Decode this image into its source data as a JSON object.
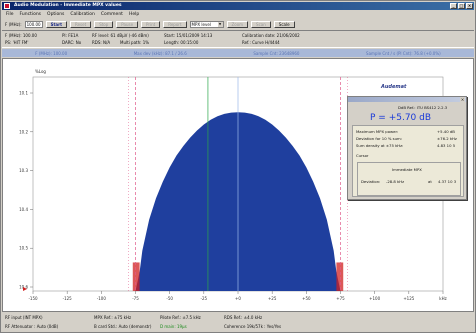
{
  "window": {
    "title": "Audio Modulation - Immediate MPX values"
  },
  "menu": [
    "File",
    "Functions",
    "Options",
    "Calibration",
    "Comment",
    "Help"
  ],
  "toolbar": {
    "freq_label": "F (MHz):",
    "freq_value": "100.00",
    "buttons": [
      {
        "label": "Start",
        "state": "active"
      },
      {
        "label": "Reset",
        "state": "disabled"
      },
      {
        "label": "Stop",
        "state": "disabled"
      },
      {
        "label": "Pause",
        "state": "disabled"
      },
      {
        "label": "Print",
        "state": "disabled"
      },
      {
        "label": "Report",
        "state": "disabled"
      }
    ],
    "mode_select": "MPX level",
    "extra_buttons": [
      {
        "label": "Zoom",
        "state": "disabled"
      },
      {
        "label": "Scan",
        "state": "disabled"
      },
      {
        "label": "Scale",
        "state": "normal"
      }
    ]
  },
  "info": {
    "freq": "F (MHz): 100.00",
    "pi": "PI: FE1A",
    "rf_level": "RF level: 61 dBµV (-46 dBm)",
    "start": "Start: 15/01/2009 14:13",
    "calibration": "Calibration date: 21/06/2002",
    "ps": "PS: 'HIT FM'",
    "darc": "DARC: No",
    "rds": "RDS: N/A",
    "multipath": "Multi path: 1%",
    "length": "Length: 00:15:00",
    "ref": "Ref.: Curve H/4444"
  },
  "params": {
    "freq": "F (MHz): 100.00",
    "max_dev": "Max dev (kHz): 87.1 / 26.6",
    "sample": "Sample Cnt: 23648960",
    "sample_rate": "Sample Cnt / s (Pl Cnt): 76.8 (+0.0%)"
  },
  "chart_data": {
    "type": "area",
    "ylabel": "%Log",
    "xlim": [
      -150,
      150
    ],
    "ylim": [
      10.0,
      10.9
    ],
    "yticks": [
      "10.1",
      "10.2",
      "10.3",
      "10.4",
      "10.5",
      "10.6"
    ],
    "xticks": [
      "-150",
      "-125",
      "-100",
      "-75",
      "-50",
      "-25",
      "+0",
      "+25",
      "+50",
      "+75",
      "+100",
      "+125",
      "kHz"
    ],
    "series": [
      {
        "x": [
          -75,
          -72,
          -70,
          -65,
          -60,
          -55,
          -50,
          -45,
          -40,
          -35,
          -30,
          -25,
          -20,
          -15,
          -10,
          -5,
          0,
          5,
          10,
          15,
          20,
          25,
          30,
          35,
          40,
          45,
          50,
          55,
          60,
          65,
          70,
          72,
          75
        ],
        "y": [
          10.0,
          10.08,
          10.17,
          10.3,
          10.39,
          10.46,
          10.52,
          10.57,
          10.61,
          10.645,
          10.675,
          10.7,
          10.72,
          10.735,
          10.745,
          10.75,
          10.752,
          10.75,
          10.745,
          10.735,
          10.72,
          10.7,
          10.675,
          10.645,
          10.61,
          10.57,
          10.52,
          10.46,
          10.39,
          10.3,
          10.17,
          10.08,
          10.0
        ],
        "color": "#1f3f9e"
      }
    ],
    "limit_lines": [
      -75,
      75
    ],
    "limit_color": "#e05a8a",
    "outer_lines": [
      -80,
      80
    ],
    "center_line": 0,
    "green_marker": -22,
    "edge_color": "#d02020"
  },
  "panel": {
    "ref": "DdB Ref.: ITU BS412 2.2.3",
    "big": "P = +5.70 dB",
    "rows": [
      {
        "label": "Maximum MPX power:",
        "value": "+5.40 dB"
      },
      {
        "label": "Deviation for 10 % sum:",
        "value": "±76.2 kHz"
      },
      {
        "label": "Sum density at ±75 kHz:",
        "value": "4.83 10 5"
      }
    ],
    "cursor_label": "Cursor",
    "cursor_value": "Immediate MPX",
    "deviation_label": "Deviation:",
    "deviation_value": "-28.8 kHz",
    "at": "at",
    "at_value": "4.37 10 3"
  },
  "logo": "Audemat",
  "status": {
    "rf_input": "RF input (INT MPX)",
    "mpx_ref": "MPX Ref.: ±75 kHz",
    "pilote_ref": "Pilote Ref.: ±7.5 kHz",
    "rds_ref": "RDS Ref.: ±4.0 kHz",
    "rf_attenuator": "RF Attenuator : Auto (0dB)",
    "b_card": "B card Std.: Auto (demonstr)",
    "d_main": "D main: 19µs",
    "coherence": "Coherence 19k/57k : Yes/Yes"
  }
}
